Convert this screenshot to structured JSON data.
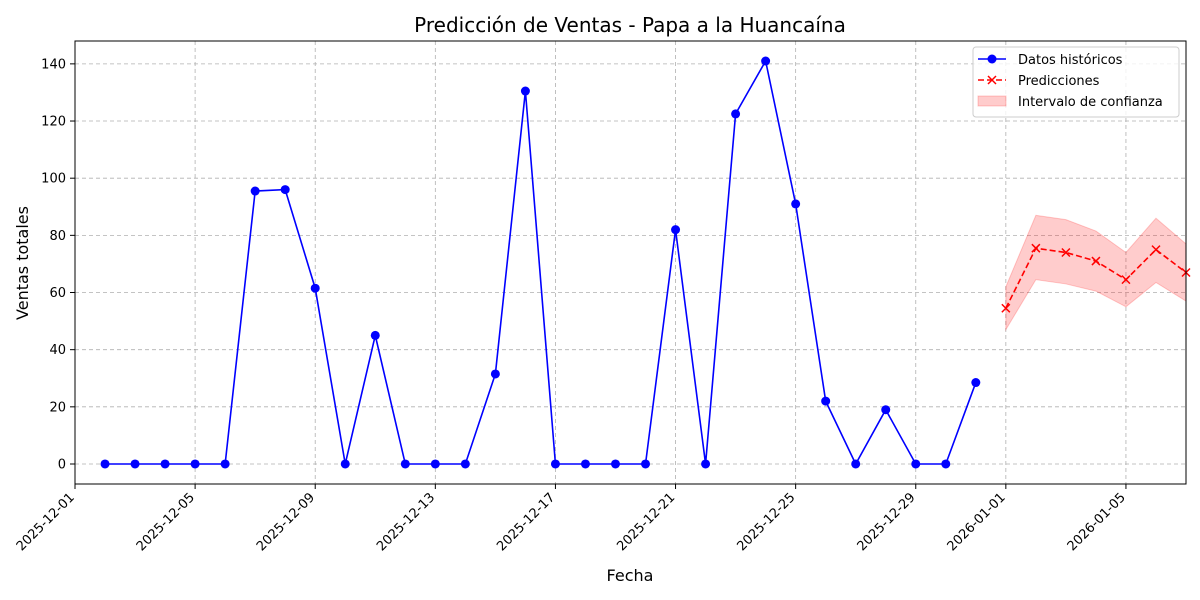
{
  "chart_data": {
    "type": "line",
    "title": "Predicción de Ventas - Papa a la Huancaína",
    "xlabel": "Fecha",
    "ylabel": "Ventas totales",
    "ylim": [
      -7,
      148
    ],
    "xlim": [
      "2025-12-01T00:00",
      "2026-01-07T00:00"
    ],
    "x_ticks": [
      "2025-12-01",
      "2025-12-05",
      "2025-12-09",
      "2025-12-13",
      "2025-12-17",
      "2025-12-21",
      "2025-12-25",
      "2025-12-29",
      "2026-01-01",
      "2026-01-05"
    ],
    "y_ticks": [
      0,
      20,
      40,
      60,
      80,
      100,
      120,
      140
    ],
    "grid": true,
    "legend_position": "top-right",
    "series": [
      {
        "name": "Datos históricos",
        "color": "#0000ff",
        "style": "solid",
        "marker": "circle",
        "x": [
          "2025-12-02",
          "2025-12-03",
          "2025-12-04",
          "2025-12-05",
          "2025-12-06",
          "2025-12-07",
          "2025-12-08",
          "2025-12-09",
          "2025-12-10",
          "2025-12-11",
          "2025-12-12",
          "2025-12-13",
          "2025-12-14",
          "2025-12-15",
          "2025-12-16",
          "2025-12-17",
          "2025-12-18",
          "2025-12-19",
          "2025-12-20",
          "2025-12-21",
          "2025-12-22",
          "2025-12-23",
          "2025-12-24",
          "2025-12-25",
          "2025-12-26",
          "2025-12-27",
          "2025-12-28",
          "2025-12-29",
          "2025-12-30",
          "2025-12-31"
        ],
        "values": [
          0,
          0,
          0,
          0,
          0,
          95.5,
          96,
          61.5,
          0,
          45,
          0,
          0,
          0,
          31.5,
          130.5,
          0,
          0,
          0,
          0,
          82,
          0,
          122.5,
          141,
          91,
          22,
          0,
          19,
          0,
          0,
          28.5
        ]
      },
      {
        "name": "Predicciones",
        "color": "#ff0000",
        "style": "dashed",
        "marker": "x",
        "x": [
          "2026-01-01",
          "2026-01-02",
          "2026-01-03",
          "2026-01-04",
          "2026-01-05",
          "2026-01-06",
          "2026-01-07"
        ],
        "values": [
          54.5,
          75.5,
          74,
          71,
          64.5,
          75,
          67
        ]
      }
    ],
    "confidence_interval": {
      "name": "Intervalo de confianza",
      "color": "#ff0000",
      "x": [
        "2026-01-01",
        "2026-01-02",
        "2026-01-03",
        "2026-01-04",
        "2026-01-05",
        "2026-01-06",
        "2026-01-07"
      ],
      "lower": [
        47,
        64.5,
        63,
        60.5,
        55,
        63.5,
        57
      ],
      "upper": [
        62,
        87,
        85.5,
        81.5,
        74,
        86,
        77
      ]
    }
  }
}
